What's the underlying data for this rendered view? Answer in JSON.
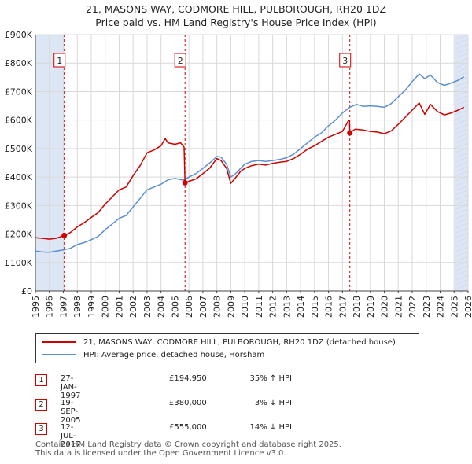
{
  "title_line1": "21, MASONS WAY, CODMORE HILL, PULBOROUGH, RH20 1DZ",
  "title_line2": "Price paid vs. HM Land Registry's House Price Index (HPI)",
  "colors": {
    "price_paid": "#cc0000",
    "hpi": "#5b8fd0",
    "shade": "#dde6f5",
    "grid": "#d8d8d8"
  },
  "legend": {
    "price_label": "21, MASONS WAY, CODMORE HILL, PULBOROUGH, RH20 1DZ (detached house)",
    "hpi_label": "HPI: Average price, detached house, Horsham"
  },
  "transactions": [
    {
      "num": "1",
      "date": "27-JAN-1997",
      "price": "£194,950",
      "hpi_diff": "35% ↑ HPI"
    },
    {
      "num": "2",
      "date": "19-SEP-2005",
      "price": "£380,000",
      "hpi_diff": "3% ↓ HPI"
    },
    {
      "num": "3",
      "date": "12-JUL-2017",
      "price": "£555,000",
      "hpi_diff": "14% ↓ HPI"
    }
  ],
  "footer_line1": "Contains HM Land Registry data © Crown copyright and database right 2025.",
  "footer_line2": "This data is licensed under the Open Government Licence v3.0.",
  "chart_data": {
    "type": "line",
    "x_range": [
      1995,
      2026
    ],
    "ylim": [
      0,
      900000
    ],
    "y_ticks": [
      0,
      100000,
      200000,
      300000,
      400000,
      500000,
      600000,
      700000,
      800000,
      900000
    ],
    "y_tick_labels": [
      "£0",
      "£100K",
      "£200K",
      "£300K",
      "£400K",
      "£500K",
      "£600K",
      "£700K",
      "£800K",
      "£900K"
    ],
    "x_ticks": [
      1995,
      1996,
      1997,
      1998,
      1999,
      2000,
      2001,
      2002,
      2003,
      2004,
      2005,
      2006,
      2007,
      2008,
      2009,
      2010,
      2011,
      2012,
      2013,
      2014,
      2015,
      2016,
      2017,
      2018,
      2019,
      2020,
      2021,
      2022,
      2023,
      2024,
      2025,
      2026
    ],
    "x_tick_labels": [
      "1995",
      "1996",
      "1997",
      "1998",
      "1999",
      "2000",
      "2001",
      "2002",
      "2003",
      "2004",
      "2005",
      "2006",
      "2007",
      "2008",
      "2009",
      "2010",
      "2011",
      "2012",
      "2013",
      "2014",
      "2015",
      "2016",
      "2017",
      "2018",
      "2019",
      "2020",
      "2021",
      "2022",
      "2023",
      "2024",
      "2025",
      "2026"
    ],
    "shaded_ranges": [
      [
        1995,
        1997.07
      ],
      [
        2025.1,
        2026
      ]
    ],
    "grid": true,
    "legend_position": "bottom",
    "markers": [
      {
        "label": "1",
        "x": 1997.07,
        "y": 194950
      },
      {
        "label": "2",
        "x": 2005.72,
        "y": 380000
      },
      {
        "label": "3",
        "x": 2017.53,
        "y": 555000
      }
    ],
    "series": [
      {
        "name": "21, MASONS WAY, CODMORE HILL, PULBOROUGH, RH20 1DZ (detached house)",
        "color": "#cc0000",
        "points": [
          [
            1995,
            187000
          ],
          [
            1995.5,
            185000
          ],
          [
            1996,
            182000
          ],
          [
            1996.5,
            185000
          ],
          [
            1997.07,
            194950
          ],
          [
            1997.5,
            205000
          ],
          [
            1998,
            225000
          ],
          [
            1998.5,
            240000
          ],
          [
            1999,
            258000
          ],
          [
            1999.5,
            275000
          ],
          [
            2000,
            305000
          ],
          [
            2000.5,
            330000
          ],
          [
            2001,
            355000
          ],
          [
            2001.5,
            365000
          ],
          [
            2002,
            405000
          ],
          [
            2002.5,
            440000
          ],
          [
            2003,
            485000
          ],
          [
            2003.5,
            495000
          ],
          [
            2004,
            510000
          ],
          [
            2004.3,
            535000
          ],
          [
            2004.5,
            520000
          ],
          [
            2005,
            515000
          ],
          [
            2005.4,
            520000
          ],
          [
            2005.65,
            505000
          ],
          [
            2005.72,
            380000
          ],
          [
            2006,
            385000
          ],
          [
            2006.5,
            393000
          ],
          [
            2007,
            412000
          ],
          [
            2007.5,
            432000
          ],
          [
            2008,
            465000
          ],
          [
            2008.3,
            458000
          ],
          [
            2008.7,
            430000
          ],
          [
            2009,
            378000
          ],
          [
            2009.3,
            395000
          ],
          [
            2009.7,
            420000
          ],
          [
            2010,
            430000
          ],
          [
            2010.5,
            440000
          ],
          [
            2011,
            445000
          ],
          [
            2011.5,
            442000
          ],
          [
            2012,
            448000
          ],
          [
            2012.5,
            452000
          ],
          [
            2013,
            455000
          ],
          [
            2013.5,
            465000
          ],
          [
            2014,
            480000
          ],
          [
            2014.5,
            498000
          ],
          [
            2015,
            510000
          ],
          [
            2015.5,
            525000
          ],
          [
            2016,
            540000
          ],
          [
            2016.5,
            550000
          ],
          [
            2017,
            560000
          ],
          [
            2017.45,
            600000
          ],
          [
            2017.5,
            600000
          ],
          [
            2017.53,
            555000
          ],
          [
            2017.9,
            568000
          ],
          [
            2018.5,
            565000
          ],
          [
            2019,
            560000
          ],
          [
            2019.5,
            558000
          ],
          [
            2020,
            552000
          ],
          [
            2020.5,
            562000
          ],
          [
            2021,
            585000
          ],
          [
            2021.5,
            610000
          ],
          [
            2022,
            635000
          ],
          [
            2022.5,
            660000
          ],
          [
            2022.9,
            620000
          ],
          [
            2023.3,
            655000
          ],
          [
            2023.8,
            630000
          ],
          [
            2024.3,
            618000
          ],
          [
            2024.8,
            625000
          ],
          [
            2025.3,
            635000
          ],
          [
            2025.7,
            645000
          ]
        ]
      },
      {
        "name": "HPI: Average price, detached house, Horsham",
        "color": "#5b8fd0",
        "points": [
          [
            1995,
            140000
          ],
          [
            1995.5,
            137000
          ],
          [
            1996,
            136000
          ],
          [
            1996.5,
            140000
          ],
          [
            1997.07,
            145000
          ],
          [
            1997.5,
            150000
          ],
          [
            1998,
            163000
          ],
          [
            1998.5,
            170000
          ],
          [
            1999,
            180000
          ],
          [
            1999.5,
            192000
          ],
          [
            2000,
            215000
          ],
          [
            2000.5,
            235000
          ],
          [
            2001,
            255000
          ],
          [
            2001.5,
            265000
          ],
          [
            2002,
            295000
          ],
          [
            2002.5,
            325000
          ],
          [
            2003,
            355000
          ],
          [
            2003.5,
            365000
          ],
          [
            2004,
            375000
          ],
          [
            2004.5,
            390000
          ],
          [
            2005,
            395000
          ],
          [
            2005.5,
            390000
          ],
          [
            2005.72,
            392000
          ],
          [
            2006,
            400000
          ],
          [
            2006.5,
            412000
          ],
          [
            2007,
            430000
          ],
          [
            2007.5,
            450000
          ],
          [
            2008,
            472000
          ],
          [
            2008.3,
            470000
          ],
          [
            2008.7,
            445000
          ],
          [
            2009,
            400000
          ],
          [
            2009.3,
            410000
          ],
          [
            2009.7,
            430000
          ],
          [
            2010,
            445000
          ],
          [
            2010.5,
            455000
          ],
          [
            2011,
            458000
          ],
          [
            2011.5,
            455000
          ],
          [
            2012,
            458000
          ],
          [
            2012.5,
            462000
          ],
          [
            2013,
            468000
          ],
          [
            2013.5,
            480000
          ],
          [
            2014,
            500000
          ],
          [
            2014.5,
            520000
          ],
          [
            2015,
            540000
          ],
          [
            2015.5,
            555000
          ],
          [
            2016,
            580000
          ],
          [
            2016.5,
            600000
          ],
          [
            2017,
            625000
          ],
          [
            2017.53,
            645000
          ],
          [
            2018,
            655000
          ],
          [
            2018.5,
            648000
          ],
          [
            2019,
            650000
          ],
          [
            2019.5,
            648000
          ],
          [
            2020,
            645000
          ],
          [
            2020.5,
            658000
          ],
          [
            2021,
            682000
          ],
          [
            2021.5,
            705000
          ],
          [
            2022,
            735000
          ],
          [
            2022.5,
            762000
          ],
          [
            2022.9,
            745000
          ],
          [
            2023.3,
            758000
          ],
          [
            2023.8,
            732000
          ],
          [
            2024.3,
            722000
          ],
          [
            2024.8,
            730000
          ],
          [
            2025.3,
            740000
          ],
          [
            2025.7,
            752000
          ]
        ]
      }
    ]
  }
}
